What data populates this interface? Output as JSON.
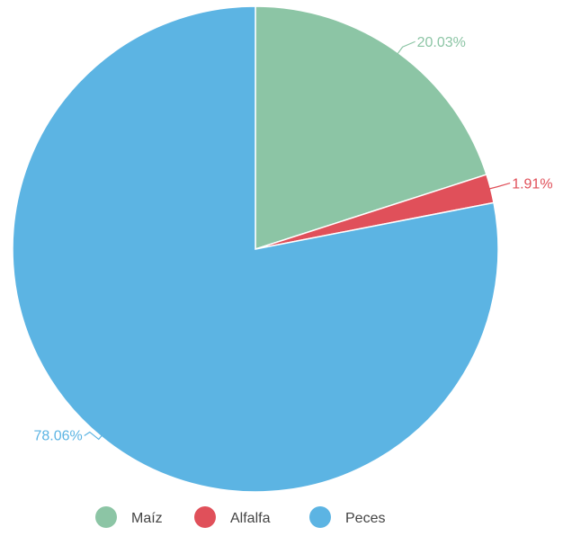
{
  "chart_data": {
    "type": "pie",
    "title": "",
    "categories": [
      "Maíz",
      "Alfalfa",
      "Peces"
    ],
    "values": [
      20.03,
      1.91,
      78.06
    ],
    "labels": [
      "20.03%",
      "1.91%",
      "78.06%"
    ],
    "colors": [
      "#8cc5a5",
      "#e0505a",
      "#5cb4e3"
    ],
    "start_angle_deg": 0,
    "direction": "clockwise",
    "legend": {
      "position": "bottom",
      "entries": [
        "Maíz",
        "Alfalfa",
        "Peces"
      ]
    }
  }
}
